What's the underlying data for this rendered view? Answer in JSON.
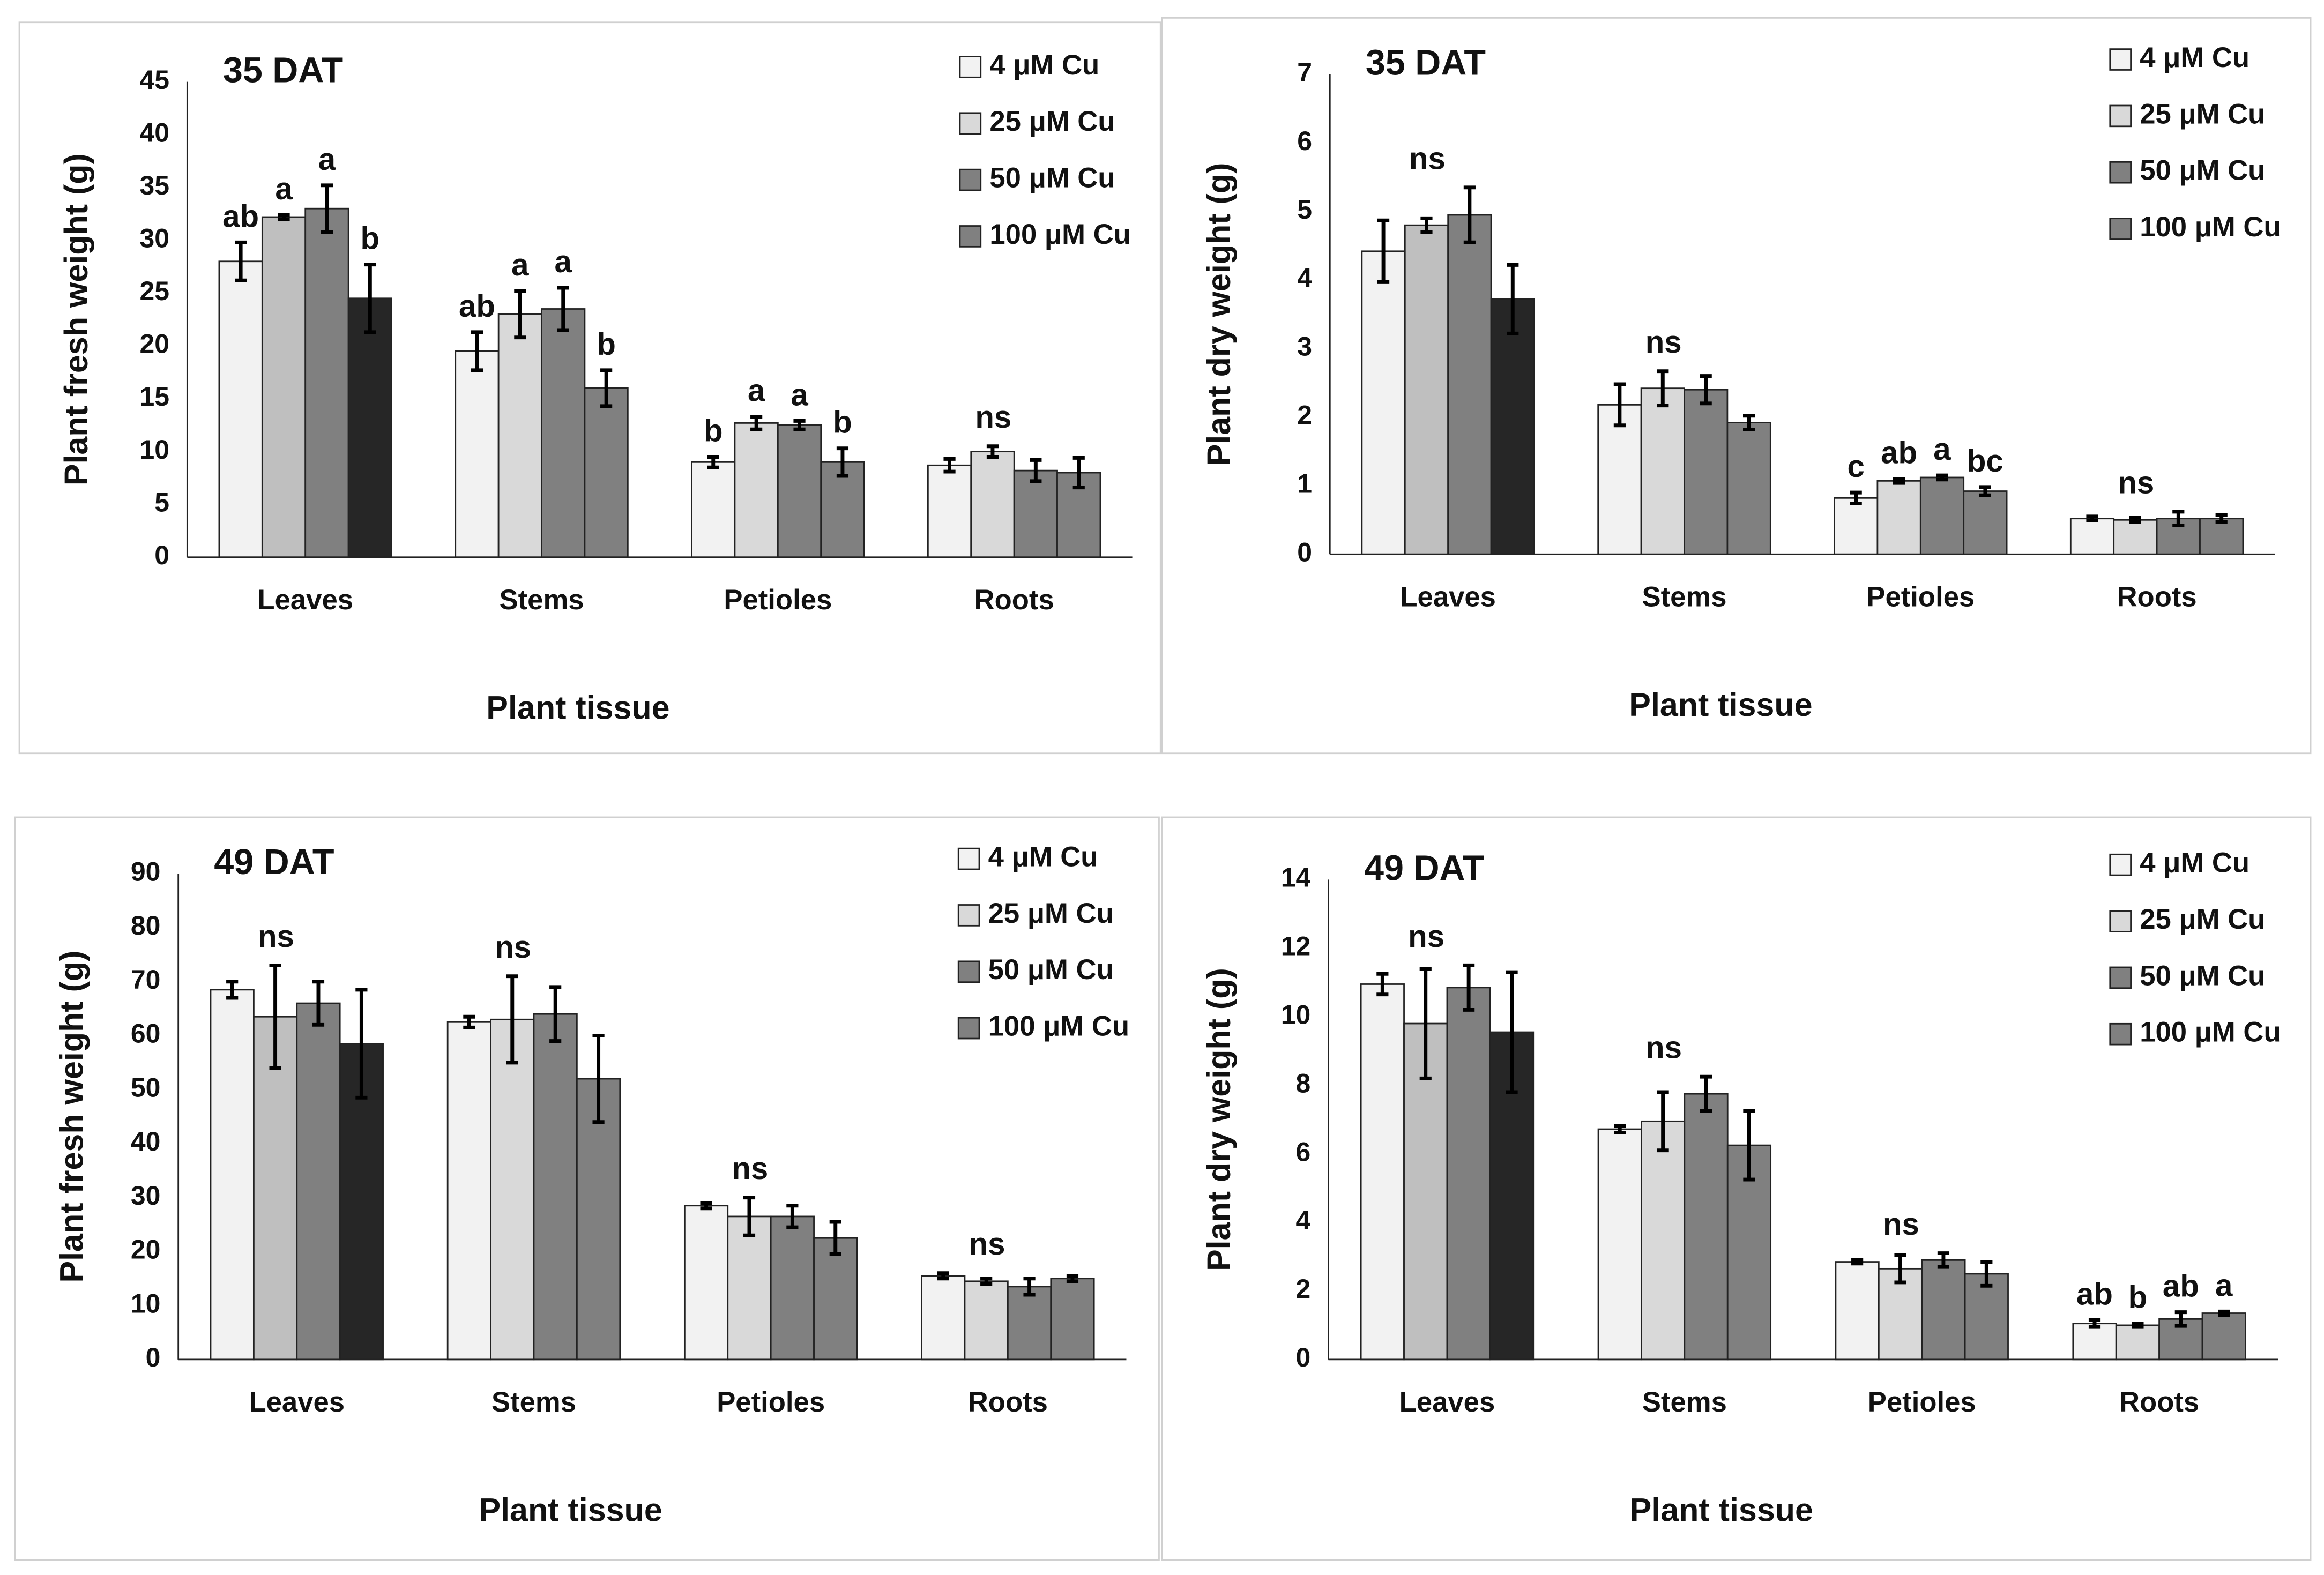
{
  "chart_data": [
    {
      "type": "bar",
      "title": "35 DAT",
      "ylabel": "Plant fresh weight (g)",
      "xlabel": "Plant tissue",
      "categories": [
        "Leaves",
        "Stems",
        "Petioles",
        "Roots"
      ],
      "ylim": [
        0,
        45
      ],
      "yticks": [
        0,
        5,
        10,
        15,
        20,
        25,
        30,
        35,
        40,
        45
      ],
      "group_labels": [
        null,
        null,
        null,
        "ns"
      ],
      "series": [
        {
          "name": "4 μM Cu",
          "color": "#f2f2f2",
          "colors": [
            "#f2f2f2",
            "#f2f2f2",
            "#f2f2f2",
            "#f2f2f2"
          ],
          "values": [
            28,
            19.5,
            9,
            8.7
          ],
          "errors": [
            1.8,
            1.8,
            0.5,
            0.6
          ],
          "labels": [
            "ab",
            "ab",
            "b",
            null
          ]
        },
        {
          "name": "25 μM Cu",
          "color": "#d9d9d9",
          "colors": [
            "#bfbfbf",
            "#d9d9d9",
            "#d9d9d9",
            "#d9d9d9"
          ],
          "values": [
            32.2,
            23,
            12.7,
            10
          ],
          "errors": [
            0.2,
            2.2,
            0.6,
            0.5
          ],
          "labels": [
            "a",
            "a",
            "a",
            null
          ]
        },
        {
          "name": "50 μM Cu",
          "color": "#808080",
          "colors": [
            "#808080",
            "#808080",
            "#808080",
            "#808080"
          ],
          "values": [
            33,
            23.5,
            12.5,
            8.2
          ],
          "errors": [
            2.2,
            2,
            0.4,
            1
          ],
          "labels": [
            "a",
            "a",
            "a",
            null
          ]
        },
        {
          "name": "100 μM Cu",
          "color": "#808080",
          "colors": [
            "#262626",
            "#808080",
            "#808080",
            "#808080"
          ],
          "values": [
            24.5,
            16,
            9,
            8
          ],
          "errors": [
            3.2,
            1.7,
            1.3,
            1.4
          ],
          "labels": [
            "b",
            "b",
            "b",
            null
          ]
        }
      ]
    },
    {
      "type": "bar",
      "title": "35 DAT",
      "ylabel": "Plant dry weight (g)",
      "xlabel": "Plant tissue",
      "categories": [
        "Leaves",
        "Stems",
        "Petioles",
        "Roots"
      ],
      "ylim": [
        0,
        7
      ],
      "yticks": [
        0,
        1,
        2,
        3,
        4,
        5,
        6,
        7
      ],
      "group_labels": [
        "ns",
        "ns",
        null,
        "ns"
      ],
      "series": [
        {
          "name": "4 μM Cu",
          "color": "#f2f2f2",
          "colors": [
            "#f2f2f2",
            "#f2f2f2",
            "#f2f2f2",
            "#f2f2f2"
          ],
          "values": [
            4.42,
            2.18,
            0.82,
            0.52
          ],
          "errors": [
            0.45,
            0.3,
            0.08,
            0.03
          ],
          "labels": [
            null,
            null,
            "c",
            null
          ]
        },
        {
          "name": "25 μM Cu",
          "color": "#d9d9d9",
          "colors": [
            "#bfbfbf",
            "#d9d9d9",
            "#d9d9d9",
            "#d9d9d9"
          ],
          "values": [
            4.8,
            2.42,
            1.07,
            0.5
          ],
          "errors": [
            0.1,
            0.25,
            0.03,
            0.03
          ],
          "labels": [
            null,
            null,
            "ab",
            null
          ]
        },
        {
          "name": "50 μM Cu",
          "color": "#808080",
          "colors": [
            "#808080",
            "#808080",
            "#808080",
            "#808080"
          ],
          "values": [
            4.95,
            2.4,
            1.12,
            0.52
          ],
          "errors": [
            0.4,
            0.2,
            0.03,
            0.1
          ],
          "labels": [
            null,
            null,
            "a",
            null
          ]
        },
        {
          "name": "100 μM Cu",
          "color": "#808080",
          "colors": [
            "#262626",
            "#808080",
            "#808080",
            "#808080"
          ],
          "values": [
            3.72,
            1.92,
            0.92,
            0.52
          ],
          "errors": [
            0.5,
            0.1,
            0.06,
            0.05
          ],
          "labels": [
            null,
            null,
            "bc",
            null
          ]
        }
      ]
    },
    {
      "type": "bar",
      "title": "49 DAT",
      "ylabel": "Plant fresh weight (g)",
      "xlabel": "Plant tissue",
      "categories": [
        "Leaves",
        "Stems",
        "Petioles",
        "Roots"
      ],
      "ylim": [
        0,
        90
      ],
      "yticks": [
        0,
        10,
        20,
        30,
        40,
        50,
        60,
        70,
        80,
        90
      ],
      "group_labels": [
        "ns",
        "ns",
        "ns",
        "ns"
      ],
      "series": [
        {
          "name": "4 μM Cu",
          "color": "#f2f2f2",
          "colors": [
            "#f2f2f2",
            "#f2f2f2",
            "#f2f2f2",
            "#f2f2f2"
          ],
          "values": [
            68.5,
            62.5,
            28.5,
            15.5
          ],
          "errors": [
            1.5,
            1,
            0.5,
            0.5
          ]
        },
        {
          "name": "25 μM Cu",
          "color": "#d9d9d9",
          "colors": [
            "#bfbfbf",
            "#d9d9d9",
            "#d9d9d9",
            "#d9d9d9"
          ],
          "values": [
            63.5,
            63,
            26.5,
            14.5
          ],
          "errors": [
            9.5,
            8,
            3.5,
            0.5
          ]
        },
        {
          "name": "50 μM Cu",
          "color": "#808080",
          "colors": [
            "#808080",
            "#808080",
            "#808080",
            "#808080"
          ],
          "values": [
            66,
            64,
            26.5,
            13.5
          ],
          "errors": [
            4,
            5,
            2,
            1.5
          ]
        },
        {
          "name": "100 μM Cu",
          "color": "#808080",
          "colors": [
            "#262626",
            "#808080",
            "#808080",
            "#808080"
          ],
          "values": [
            58.5,
            52,
            22.5,
            15
          ],
          "errors": [
            10,
            8,
            3,
            0.5
          ]
        }
      ]
    },
    {
      "type": "bar",
      "title": "49 DAT",
      "ylabel": "Plant dry weight (g)",
      "xlabel": "Plant tissue",
      "categories": [
        "Leaves",
        "Stems",
        "Petioles",
        "Roots"
      ],
      "ylim": [
        0,
        14
      ],
      "yticks": [
        0,
        2,
        4,
        6,
        8,
        10,
        12,
        14
      ],
      "group_labels": [
        "ns",
        "ns",
        "ns",
        null
      ],
      "series": [
        {
          "name": "4 μM Cu",
          "color": "#f2f2f2",
          "colors": [
            "#f2f2f2",
            "#f2f2f2",
            "#f2f2f2",
            "#f2f2f2"
          ],
          "values": [
            10.95,
            6.72,
            2.85,
            1.05
          ],
          "errors": [
            0.3,
            0.1,
            0.05,
            0.1
          ],
          "labels": [
            null,
            null,
            null,
            "ab"
          ]
        },
        {
          "name": "25 μM Cu",
          "color": "#d9d9d9",
          "colors": [
            "#bfbfbf",
            "#d9d9d9",
            "#d9d9d9",
            "#d9d9d9"
          ],
          "values": [
            9.8,
            6.95,
            2.65,
            1.0
          ],
          "errors": [
            1.6,
            0.85,
            0.4,
            0.05
          ],
          "labels": [
            null,
            null,
            null,
            "b"
          ]
        },
        {
          "name": "50 μM Cu",
          "color": "#808080",
          "colors": [
            "#808080",
            "#808080",
            "#808080",
            "#808080"
          ],
          "values": [
            10.85,
            7.75,
            2.9,
            1.18
          ],
          "errors": [
            0.65,
            0.5,
            0.2,
            0.2
          ],
          "labels": [
            null,
            null,
            null,
            "ab"
          ]
        },
        {
          "name": "100 μM Cu",
          "color": "#808080",
          "colors": [
            "#262626",
            "#808080",
            "#808080",
            "#808080"
          ],
          "values": [
            9.55,
            6.25,
            2.5,
            1.35
          ],
          "errors": [
            1.75,
            1,
            0.35,
            0.05
          ],
          "labels": [
            null,
            null,
            null,
            "a"
          ]
        }
      ]
    }
  ]
}
